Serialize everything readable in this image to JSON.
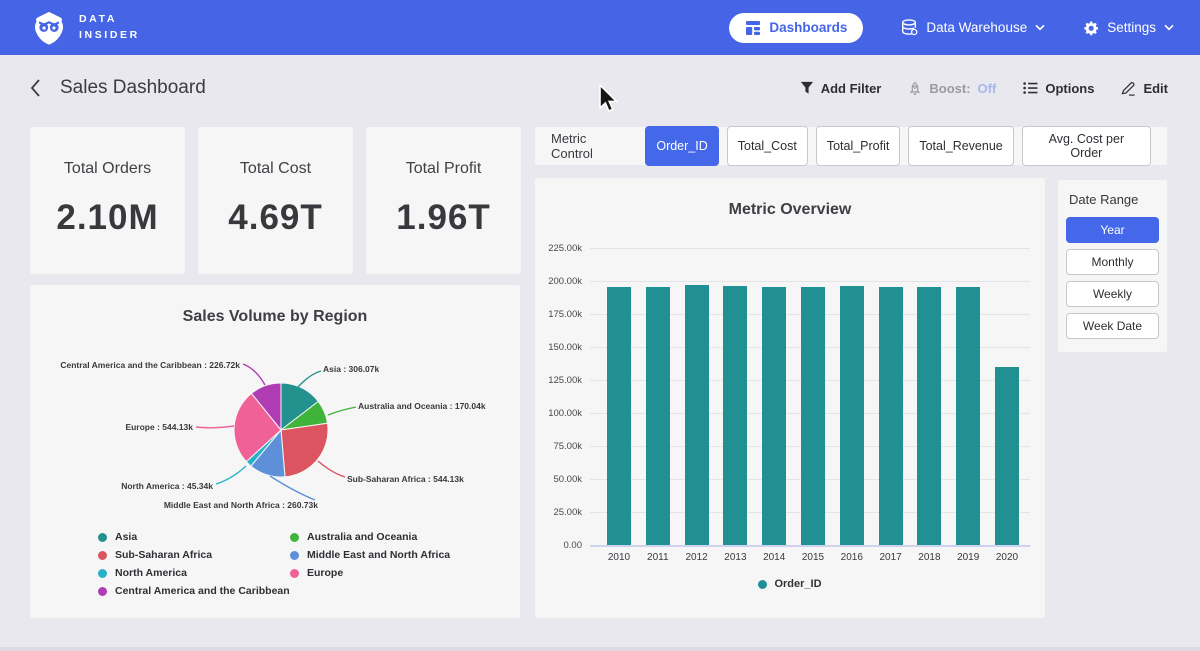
{
  "nav": {
    "brand": {
      "line1": "DATA",
      "line2": "INSIDER"
    },
    "dashboards_label": "Dashboards",
    "data_warehouse_label": "Data Warehouse",
    "settings_label": "Settings"
  },
  "header": {
    "title": "Sales Dashboard",
    "actions": {
      "add_filter": "Add Filter",
      "boost_label": "Boost:",
      "boost_state": "Off",
      "options": "Options",
      "edit": "Edit"
    }
  },
  "kpis": [
    {
      "label": "Total Orders",
      "value": "2.10M"
    },
    {
      "label": "Total Cost",
      "value": "4.69T"
    },
    {
      "label": "Total Profit",
      "value": "1.96T"
    }
  ],
  "metric_control": {
    "label": "Metric Control",
    "options": [
      "Order_ID",
      "Total_Cost",
      "Total_Profit",
      "Total_Revenue",
      "Avg. Cost per Order"
    ],
    "selected": "Order_ID"
  },
  "date_range": {
    "label": "Date Range",
    "options": [
      "Year",
      "Monthly",
      "Weekly",
      "Week Date"
    ],
    "selected": "Year"
  },
  "colors": {
    "nav_blue": "#4564e6",
    "accent_blue": "#4468e9",
    "bar_teal": "#219092",
    "page_bg": "#e9e8ee",
    "card_bg": "#f6f6f7"
  },
  "chart_data": [
    {
      "type": "pie",
      "title": "Sales Volume by Region",
      "value_unit": "k",
      "direction": "clockwise",
      "start_angle_deg": 0,
      "legend_position": "bottom",
      "slices": [
        {
          "name": "Asia",
          "value": 306.07,
          "display": "306.07k",
          "color": "#23918d"
        },
        {
          "name": "Australia and Oceania",
          "value": 170.04,
          "display": "170.04k",
          "color": "#40b43a"
        },
        {
          "name": "Sub-Saharan Africa",
          "value": 544.13,
          "display": "544.13k",
          "color": "#dc5460"
        },
        {
          "name": "Middle East and North Africa",
          "value": 260.73,
          "display": "260.73k",
          "color": "#5e90da"
        },
        {
          "name": "North America",
          "value": 45.34,
          "display": "45.34k",
          "color": "#27b2c8"
        },
        {
          "name": "Europe",
          "value": 544.13,
          "display": "544.13k",
          "color": "#ef6197"
        },
        {
          "name": "Central America and the Caribbean",
          "value": 226.72,
          "display": "226.72k",
          "color": "#af3cb2"
        }
      ]
    },
    {
      "type": "bar",
      "title": "Metric Overview",
      "categories": [
        "2010",
        "2011",
        "2012",
        "2013",
        "2014",
        "2015",
        "2016",
        "2017",
        "2018",
        "2019",
        "2020"
      ],
      "series": [
        {
          "name": "Order_ID",
          "color": "#219092",
          "values": [
            195800,
            195600,
            197200,
            195900,
            195500,
            195300,
            196400,
            195700,
            195600,
            195800,
            134600
          ]
        }
      ],
      "xlabel": "",
      "ylabel": "",
      "ylim": [
        0,
        225000
      ],
      "grid": "horizontal",
      "legend_position": "bottom",
      "y_ticks": [
        {
          "value": 225000,
          "label": "225.00k"
        },
        {
          "value": 200000,
          "label": "200.00k"
        },
        {
          "value": 175000,
          "label": "175.00k"
        },
        {
          "value": 150000,
          "label": "150.00k"
        },
        {
          "value": 125000,
          "label": "125.00k"
        },
        {
          "value": 100000,
          "label": "100.00k"
        },
        {
          "value": 75000,
          "label": "75.00k"
        },
        {
          "value": 50000,
          "label": "50.00k"
        },
        {
          "value": 25000,
          "label": "25.00k"
        },
        {
          "value": 0,
          "label": "0.00"
        }
      ]
    }
  ]
}
